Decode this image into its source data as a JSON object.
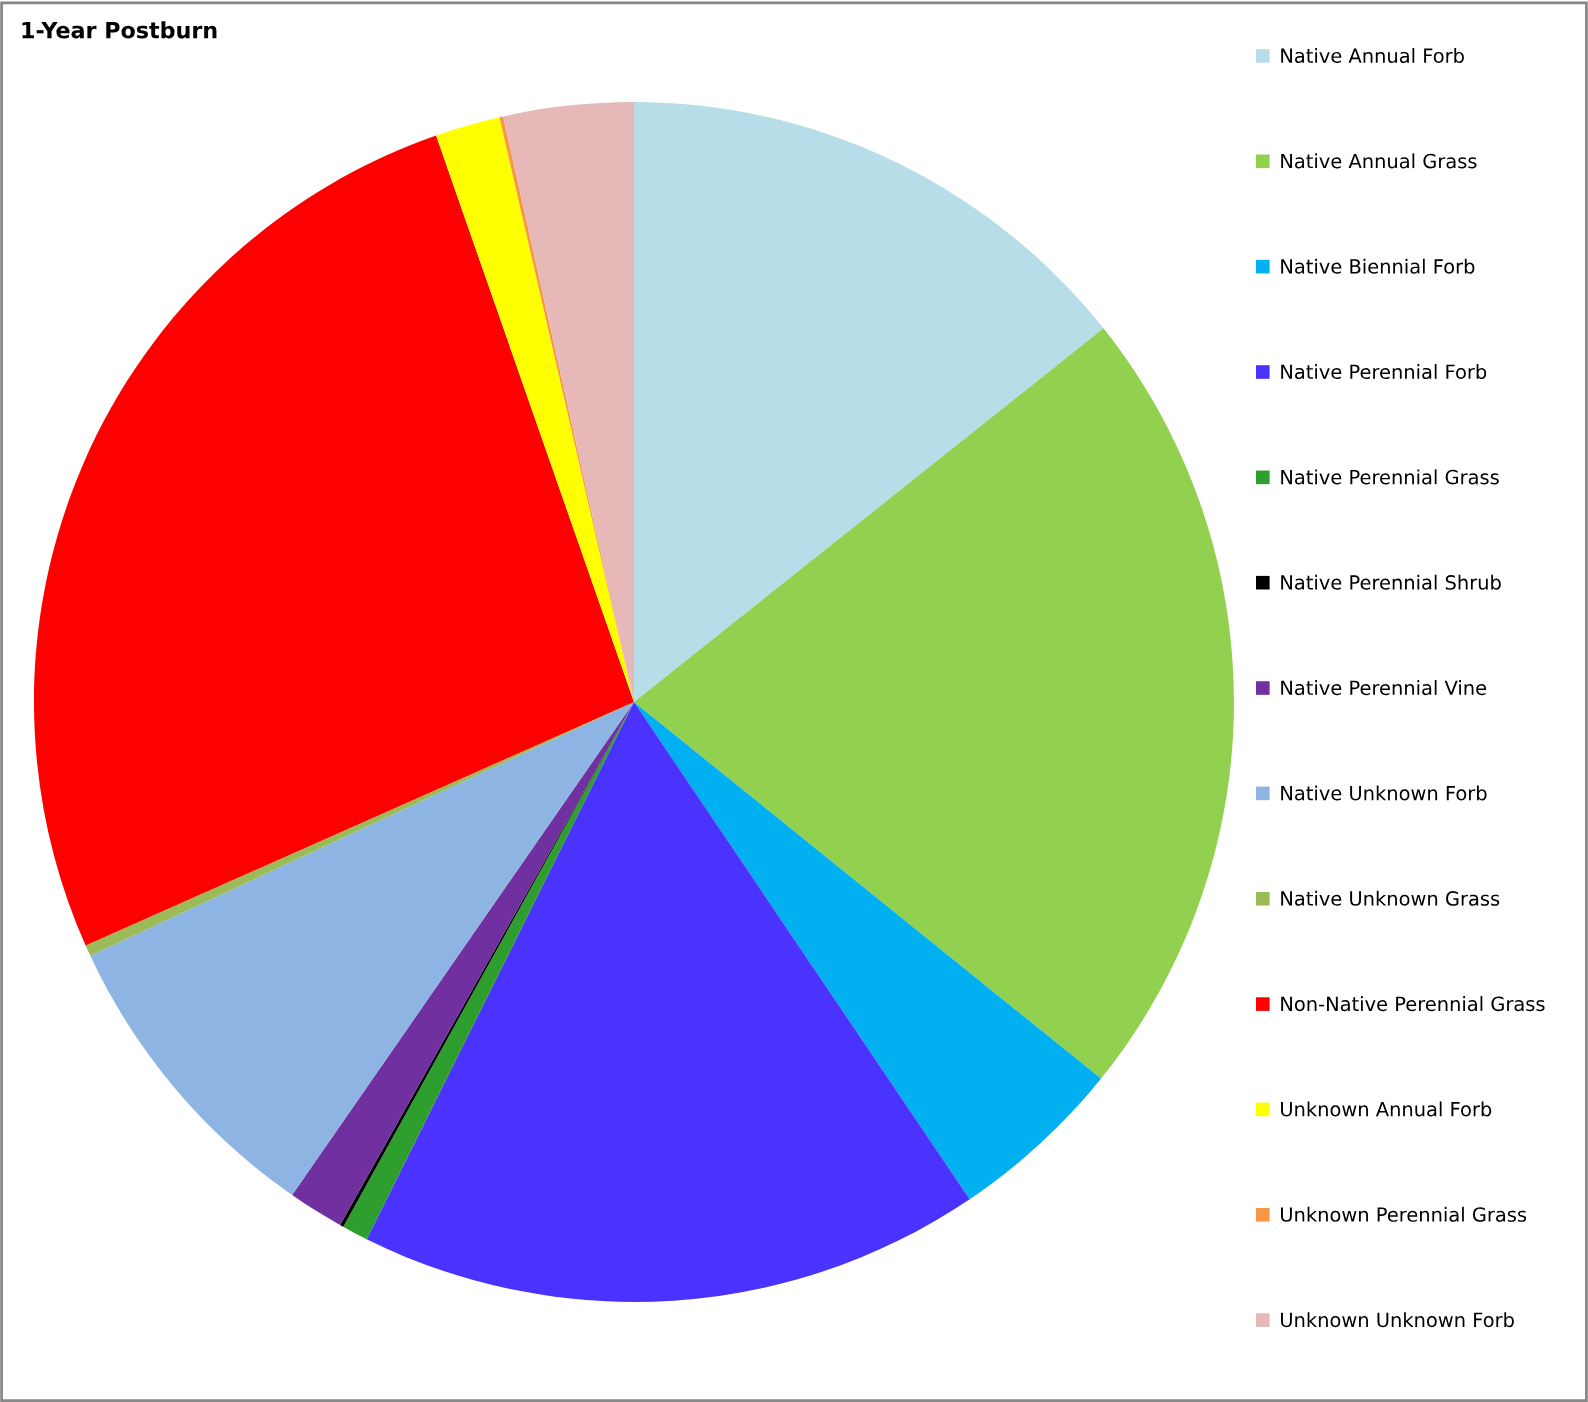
{
  "chart_data": {
    "type": "pie",
    "title": "1-Year Postburn",
    "categories": [
      "Native Annual Forb",
      "Native Annual Grass",
      "Native Biennial Forb",
      "Native Perennial Forb",
      "Native Perennial Grass",
      "Native Perennial Shrub",
      "Native Perennial Vine",
      "Native Unknown Forb",
      "Native Unknown Grass",
      "Non-Native Perennial Grass",
      "Unknown Annual Forb",
      "Unknown Perennial Grass",
      "Unknown Unknown Forb"
    ],
    "values": [
      14.3,
      21.5,
      4.75,
      16.8,
      0.7,
      0.1,
      1.5,
      8.4,
      0.3,
      26.3,
      1.75,
      0.1,
      3.5
    ],
    "colors": [
      "#b7dee8",
      "#92d050",
      "#00b0f0",
      "#4a32ff",
      "#2e9e2e",
      "#000000",
      "#7030a0",
      "#8eb4e3",
      "#9bbb59",
      "#ff0000",
      "#ffff00",
      "#f79646",
      "#e6b9b8"
    ],
    "legend": "right"
  }
}
